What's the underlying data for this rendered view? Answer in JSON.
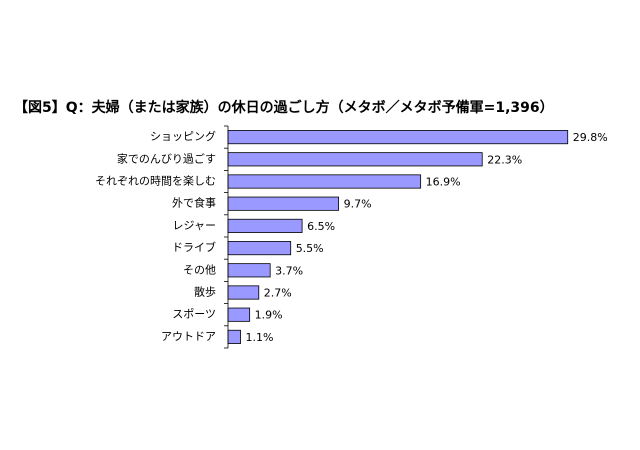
{
  "chart_data": {
    "type": "bar",
    "orientation": "horizontal",
    "title": "【図5】Q：夫婦（または家族）の休日の過ごし方（メタボ／メタボ予備軍=1,396）",
    "categories": [
      "ショッピング",
      "家でのんびり過ごす",
      "それぞれの時間を楽しむ",
      "外で食事",
      "レジャー",
      "ドライブ",
      "その他",
      "散歩",
      "スポーツ",
      "アウトドア"
    ],
    "values": [
      29.8,
      22.3,
      16.9,
      9.7,
      6.5,
      5.5,
      3.7,
      2.7,
      1.9,
      1.1
    ],
    "value_labels": [
      "29.8%",
      "22.3%",
      "16.9%",
      "9.7%",
      "6.5%",
      "5.5%",
      "3.7%",
      "2.7%",
      "1.9%",
      "1.1%"
    ],
    "color": "#9999ff",
    "xlim": [
      0,
      30
    ]
  }
}
